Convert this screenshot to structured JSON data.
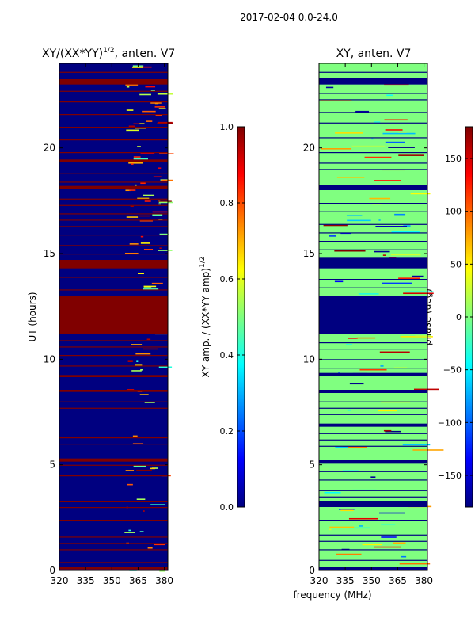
{
  "figure": {
    "suptitle": "2017-02-04 0.0-24.0",
    "xlabel_shared": "frequency (MHz)"
  },
  "chart_data": [
    {
      "type": "heatmap",
      "title_main": "XY/(XX*YY)",
      "title_exp": "1/2",
      "title_tail": ", anten. V7",
      "xlabel": "",
      "ylabel": "UT (hours)",
      "xlim": [
        320,
        382
      ],
      "ylim": [
        0,
        24
      ],
      "xticks": [
        "320",
        "335",
        "350",
        "365",
        "380"
      ],
      "yticks": [
        "0",
        "5",
        "10",
        "15",
        "20"
      ],
      "colorbar": {
        "label_main": "XY amp. / (XX*YY amp)",
        "label_exp": "1/2",
        "range": [
          0.0,
          1.0
        ],
        "ticks": [
          "0.0",
          "0.2",
          "0.4",
          "0.6",
          "0.8",
          "1.0"
        ]
      },
      "background_value": 0.0,
      "flagged_value": 1.0,
      "flagged_bands_hours": [
        [
          11.2,
          13.0
        ],
        [
          14.3,
          14.7
        ],
        [
          23.0,
          23.25
        ],
        [
          18.05,
          18.2
        ],
        [
          19.35,
          19.45
        ],
        [
          5.15,
          5.3
        ],
        [
          9.15,
          9.25
        ],
        [
          8.45,
          8.55
        ],
        [
          0.05,
          0.15
        ]
      ],
      "flagged_lines_hours": [
        0.4,
        1.0,
        1.3,
        1.6,
        2.4,
        3.0,
        3.3,
        4.5,
        5.0,
        6.0,
        6.3,
        7.7,
        8.0,
        9.7,
        10.2,
        10.6,
        10.9,
        13.3,
        13.9,
        15.0,
        15.4,
        15.9,
        16.3,
        16.6,
        16.9,
        17.3,
        17.6,
        18.4,
        18.8,
        19.8,
        20.4,
        21.0,
        21.6,
        22.2,
        22.7,
        23.6
      ]
    },
    {
      "type": "heatmap",
      "title": "XY, anten. V7",
      "xlabel": "frequency (MHz)",
      "ylabel": "",
      "xlim": [
        320,
        382
      ],
      "ylim": [
        0,
        24
      ],
      "xticks": [
        "320",
        "335",
        "350",
        "365",
        "380"
      ],
      "yticks": [
        "0",
        "5",
        "10",
        "15",
        "20"
      ],
      "colorbar": {
        "label": "phase (deg)",
        "range": [
          -180,
          180
        ],
        "ticks": [
          "−150",
          "−100",
          "−50",
          "0",
          "50",
          "100",
          "150"
        ]
      },
      "background_value": 0,
      "flagged_value": -180,
      "flagged_bands_hours": [
        [
          11.2,
          13.0
        ],
        [
          14.3,
          14.8
        ],
        [
          23.0,
          23.3
        ],
        [
          18.0,
          18.25
        ],
        [
          3.0,
          3.3
        ],
        [
          9.2,
          9.35
        ],
        [
          8.4,
          8.55
        ],
        [
          0.0,
          0.15
        ],
        [
          5.05,
          5.25
        ],
        [
          6.8,
          6.95
        ]
      ],
      "flagged_lines_hours": [
        0.5,
        1.0,
        1.4,
        1.7,
        2.4,
        3.5,
        3.8,
        4.3,
        4.7,
        5.9,
        6.2,
        6.5,
        7.4,
        7.7,
        8.0,
        9.6,
        10.0,
        10.5,
        10.8,
        13.4,
        13.8,
        15.2,
        15.6,
        16.0,
        16.4,
        17.0,
        17.4,
        19.0,
        19.3,
        19.8,
        20.5,
        21.2,
        21.7,
        22.3,
        22.6,
        23.6
      ]
    }
  ]
}
